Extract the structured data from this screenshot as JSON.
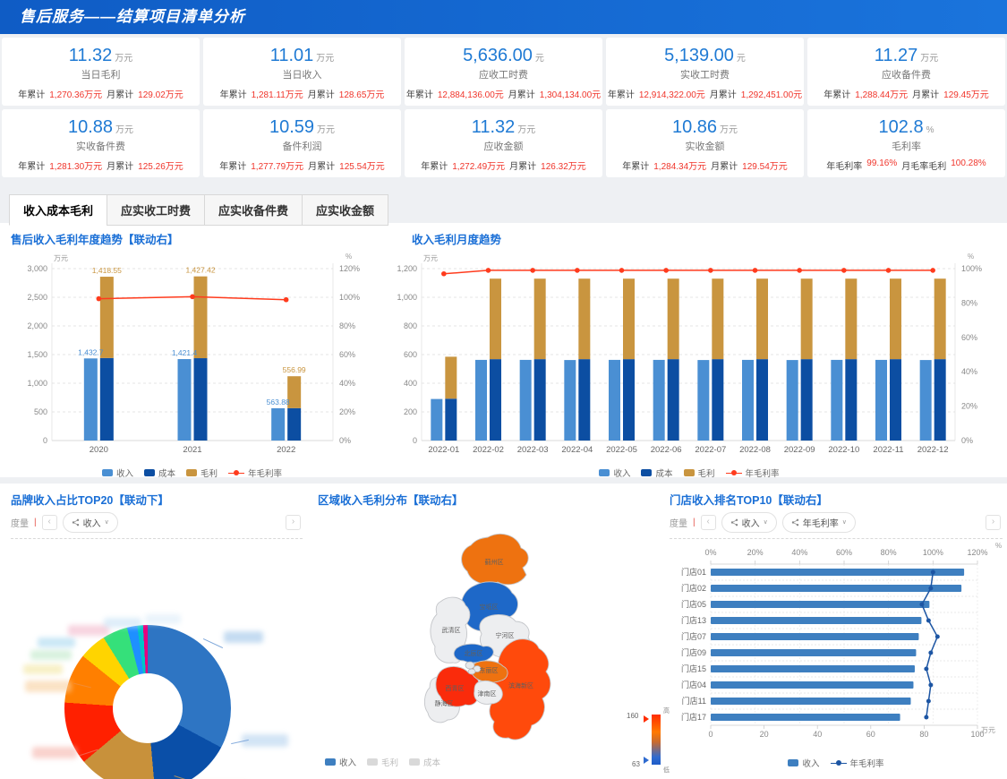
{
  "header": {
    "title": "售后服务——结算项目清单分析"
  },
  "icons": {
    "chevron_left": "‹",
    "chevron_right": "›",
    "chevron_down": "∨"
  },
  "kpi_cards": [
    {
      "value": "11.32",
      "unit": "万元",
      "name": "当日毛利",
      "stats": [
        {
          "label": "年累计",
          "value": "1,270.36万元"
        },
        {
          "label": "月累计",
          "value": "129.02万元"
        }
      ]
    },
    {
      "value": "11.01",
      "unit": "万元",
      "name": "当日收入",
      "stats": [
        {
          "label": "年累计",
          "value": "1,281.11万元"
        },
        {
          "label": "月累计",
          "value": "128.65万元"
        }
      ]
    },
    {
      "value": "5,636.00",
      "unit": "元",
      "name": "应收工时费",
      "stats": [
        {
          "label": "年累计",
          "value": "12,884,136.00元"
        },
        {
          "label": "月累计",
          "value": "1,304,134.00元"
        }
      ]
    },
    {
      "value": "5,139.00",
      "unit": "元",
      "name": "实收工时费",
      "stats": [
        {
          "label": "年累计",
          "value": "12,914,322.00元"
        },
        {
          "label": "月累计",
          "value": "1,292,451.00元"
        }
      ]
    },
    {
      "value": "11.27",
      "unit": "万元",
      "name": "应收备件费",
      "stats": [
        {
          "label": "年累计",
          "value": "1,288.44万元"
        },
        {
          "label": "月累计",
          "value": "129.45万元"
        }
      ]
    },
    {
      "value": "10.88",
      "unit": "万元",
      "name": "实收备件费",
      "stats": [
        {
          "label": "年累计",
          "value": "1,281.30万元"
        },
        {
          "label": "月累计",
          "value": "125.26万元"
        }
      ]
    },
    {
      "value": "10.59",
      "unit": "万元",
      "name": "备件利润",
      "stats": [
        {
          "label": "年累计",
          "value": "1,277.79万元"
        },
        {
          "label": "月累计",
          "value": "125.54万元"
        }
      ]
    },
    {
      "value": "11.32",
      "unit": "万元",
      "name": "应收金额",
      "stats": [
        {
          "label": "年累计",
          "value": "1,272.49万元"
        },
        {
          "label": "月累计",
          "value": "126.32万元"
        }
      ]
    },
    {
      "value": "10.86",
      "unit": "万元",
      "name": "实收金额",
      "stats": [
        {
          "label": "年累计",
          "value": "1,284.34万元"
        },
        {
          "label": "月累计",
          "value": "129.54万元"
        }
      ]
    },
    {
      "value": "102.8",
      "unit": "%",
      "name": "毛利率",
      "stats": [
        {
          "label": "年毛利率",
          "value": "99.16%"
        },
        {
          "label": "月毛率毛利",
          "value": "100.28%"
        }
      ]
    }
  ],
  "tabs": [
    {
      "label": "收入成本毛利",
      "active": true
    },
    {
      "label": "应实收工时费",
      "active": false
    },
    {
      "label": "应实收备件费",
      "active": false
    },
    {
      "label": "应实收金额",
      "active": false
    }
  ],
  "panels": {
    "yearly_title": "售后收入毛利年度趋势【联动右】",
    "monthly_title": "收入毛利月度趋势",
    "brand_title": "品牌收入占比TOP20【联动下】",
    "region_title": "区域收入毛利分布【联动右】",
    "store_title": "门店收入排名TOP10【联动右】",
    "measure_label": "度量"
  },
  "toolbars": {
    "brand": {
      "measures": [
        "收入"
      ]
    },
    "store": {
      "measures": [
        "收入",
        "年毛利率"
      ]
    }
  },
  "chart_data": [
    {
      "id": "yearly",
      "type": "bar+line",
      "title": "售后收入毛利年度趋势【联动右】",
      "unit_left": "万元",
      "unit_right": "%",
      "categories": [
        "2020",
        "2021",
        "2022"
      ],
      "series": [
        {
          "name": "收入",
          "color": "#4a8fd3",
          "values": [
            1432.7,
            1421.4,
            563.88
          ]
        },
        {
          "name": "成本",
          "color": "#0c4ea2",
          "values": [
            1440,
            1437,
            565
          ],
          "stack": "s"
        },
        {
          "name": "毛利",
          "color": "#c9953f",
          "values": [
            1418.55,
            1427.42,
            556.99
          ],
          "stack": "s"
        }
      ],
      "line": {
        "name": "年毛利率",
        "color": "#ff3b1d",
        "values": [
          99,
          100.4,
          98.3
        ]
      },
      "bar_labels": {
        "income": [
          "1,432.7",
          "1,421.4",
          "563.88"
        ],
        "profit": [
          "1,418.55",
          "1,427.42",
          "556.99"
        ]
      },
      "ylim_left": [
        0,
        3000
      ],
      "ytick_left": 500,
      "ylim_right": [
        0,
        120
      ],
      "ytick_right": 20,
      "legend": [
        "收入",
        "成本",
        "毛利",
        "年毛利率"
      ],
      "grid": true
    },
    {
      "id": "monthly",
      "type": "bar+line",
      "title": "收入毛利月度趋势",
      "unit_left": "万元",
      "unit_right": "%",
      "categories": [
        "2022-01",
        "2022-02",
        "2022-03",
        "2022-04",
        "2022-05",
        "2022-06",
        "2022-07",
        "2022-08",
        "2022-09",
        "2022-10",
        "2022-11",
        "2022-12"
      ],
      "series": [
        {
          "name": "收入",
          "color": "#4a8fd3",
          "values": [
            290,
            563,
            563,
            562,
            563,
            563,
            562,
            563,
            562,
            563,
            563,
            562
          ]
        },
        {
          "name": "成本",
          "color": "#0c4ea2",
          "values": [
            292,
            568,
            568,
            568,
            568,
            568,
            568,
            568,
            568,
            568,
            568,
            568
          ],
          "stack": "s"
        },
        {
          "name": "毛利",
          "color": "#c9953f",
          "values": [
            293,
            562,
            562,
            562,
            562,
            562,
            562,
            562,
            562,
            562,
            562,
            562
          ],
          "stack": "s"
        }
      ],
      "line": {
        "name": "年毛利率",
        "color": "#ff3b1d",
        "values": [
          97,
          99,
          99,
          99,
          99,
          99,
          99,
          99,
          99,
          99,
          99,
          99
        ]
      },
      "ylim_left": [
        0,
        1200
      ],
      "ytick_left": 200,
      "ylim_right": [
        0,
        100
      ],
      "ytick_right": 20,
      "legend": [
        "收入",
        "成本",
        "毛利",
        "年毛利率"
      ],
      "grid": true
    },
    {
      "id": "brand",
      "type": "pie",
      "title": "品牌收入占比TOP20【联动下】",
      "labels_obscured": true,
      "segments": [
        {
          "color": "#2e75c3",
          "pct": 32.8
        },
        {
          "color": "#0a4fa8",
          "pct": 15.8
        },
        {
          "color": "#c8913b",
          "pct": 15.3
        },
        {
          "color": "#ff2000",
          "pct": 12.2
        },
        {
          "color": "#ff7f00",
          "pct": 9.7
        },
        {
          "color": "#ffd400",
          "pct": 5.3
        },
        {
          "color": "#35e07a",
          "pct": 4.9
        },
        {
          "color": "#1e90ff",
          "pct": 2.0
        },
        {
          "color": "#00c5c5",
          "pct": 1.1
        },
        {
          "color": "#e6007e",
          "pct": 0.9
        }
      ]
    },
    {
      "id": "region",
      "type": "map",
      "title": "区域收入毛利分布【联动右】",
      "legend": [
        {
          "label": "收入",
          "active": true
        },
        {
          "label": "毛利",
          "active": false
        },
        {
          "label": "成本",
          "active": false
        }
      ],
      "scale": {
        "max": "160",
        "min": "63",
        "max_label": "高",
        "min_label": "低"
      },
      "regions": [
        {
          "name": "蓟州区",
          "color": "#ee7210"
        },
        {
          "name": "宝坻区",
          "color": "#1e68c8"
        },
        {
          "name": "武清区",
          "color": "#edeef0"
        },
        {
          "name": "宁河区",
          "color": "#edeef0"
        },
        {
          "name": "滨海新区",
          "color": "#ff4a0c"
        },
        {
          "name": "静海区",
          "color": "#edeef0"
        },
        {
          "name": "西青区",
          "color": "#fa2b0b"
        },
        {
          "name": "北辰区",
          "color": "#1e68c8"
        },
        {
          "name": "东丽区",
          "color": "#ee7210"
        },
        {
          "name": "津南区",
          "color": "#edeef0"
        }
      ]
    },
    {
      "id": "store",
      "type": "hbar+line",
      "title": "门店收入排名TOP10【联动右】",
      "unit_bottom": "万元",
      "unit_top": "%",
      "categories": [
        "门店01",
        "门店02",
        "门店05",
        "门店13",
        "门店07",
        "门店09",
        "门店15",
        "门店04",
        "门店11",
        "门店17"
      ],
      "bar": {
        "name": "收入",
        "color": "#3e7fc0",
        "values": [
          95,
          94,
          82,
          79,
          78,
          77,
          76.5,
          76,
          75,
          71
        ]
      },
      "line": {
        "name": "年毛利率",
        "color": "#1c55a3",
        "values": [
          100,
          99,
          95,
          98,
          102,
          99,
          97,
          99,
          98,
          97
        ]
      },
      "xlim_bottom": [
        0,
        100
      ],
      "xtick_bottom": 20,
      "xlim_top": [
        0,
        120
      ],
      "xtick_top": 20,
      "legend": [
        "收入",
        "年毛利率"
      ],
      "grid": true
    }
  ]
}
